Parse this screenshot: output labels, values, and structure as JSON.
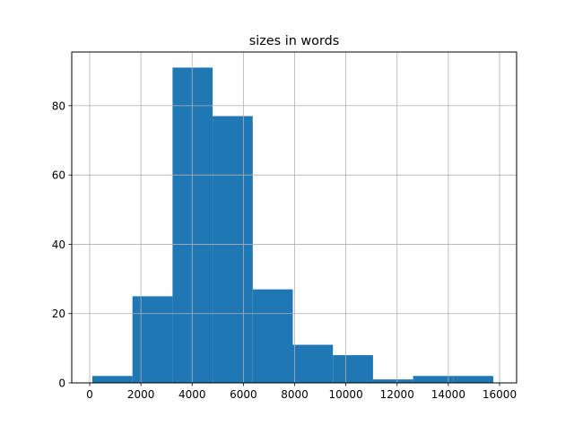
{
  "chart_data": {
    "type": "bar",
    "title": "sizes in words",
    "xlabel": "",
    "ylabel": "",
    "bin_edges": [
      105,
      1670,
      3235,
      4800,
      6365,
      7930,
      9495,
      11060,
      12625,
      14190,
      15755
    ],
    "values": [
      2,
      25,
      91,
      77,
      27,
      11,
      8,
      1,
      2,
      2
    ],
    "xlim": [
      -700,
      16665
    ],
    "ylim": [
      0,
      95.5
    ],
    "xticks": [
      0,
      2000,
      4000,
      6000,
      8000,
      10000,
      12000,
      14000,
      16000
    ],
    "yticks": [
      0,
      20,
      40,
      60,
      80
    ],
    "grid": true,
    "bar_color": "#1f77b4",
    "grid_color": "#b0b0b0"
  }
}
